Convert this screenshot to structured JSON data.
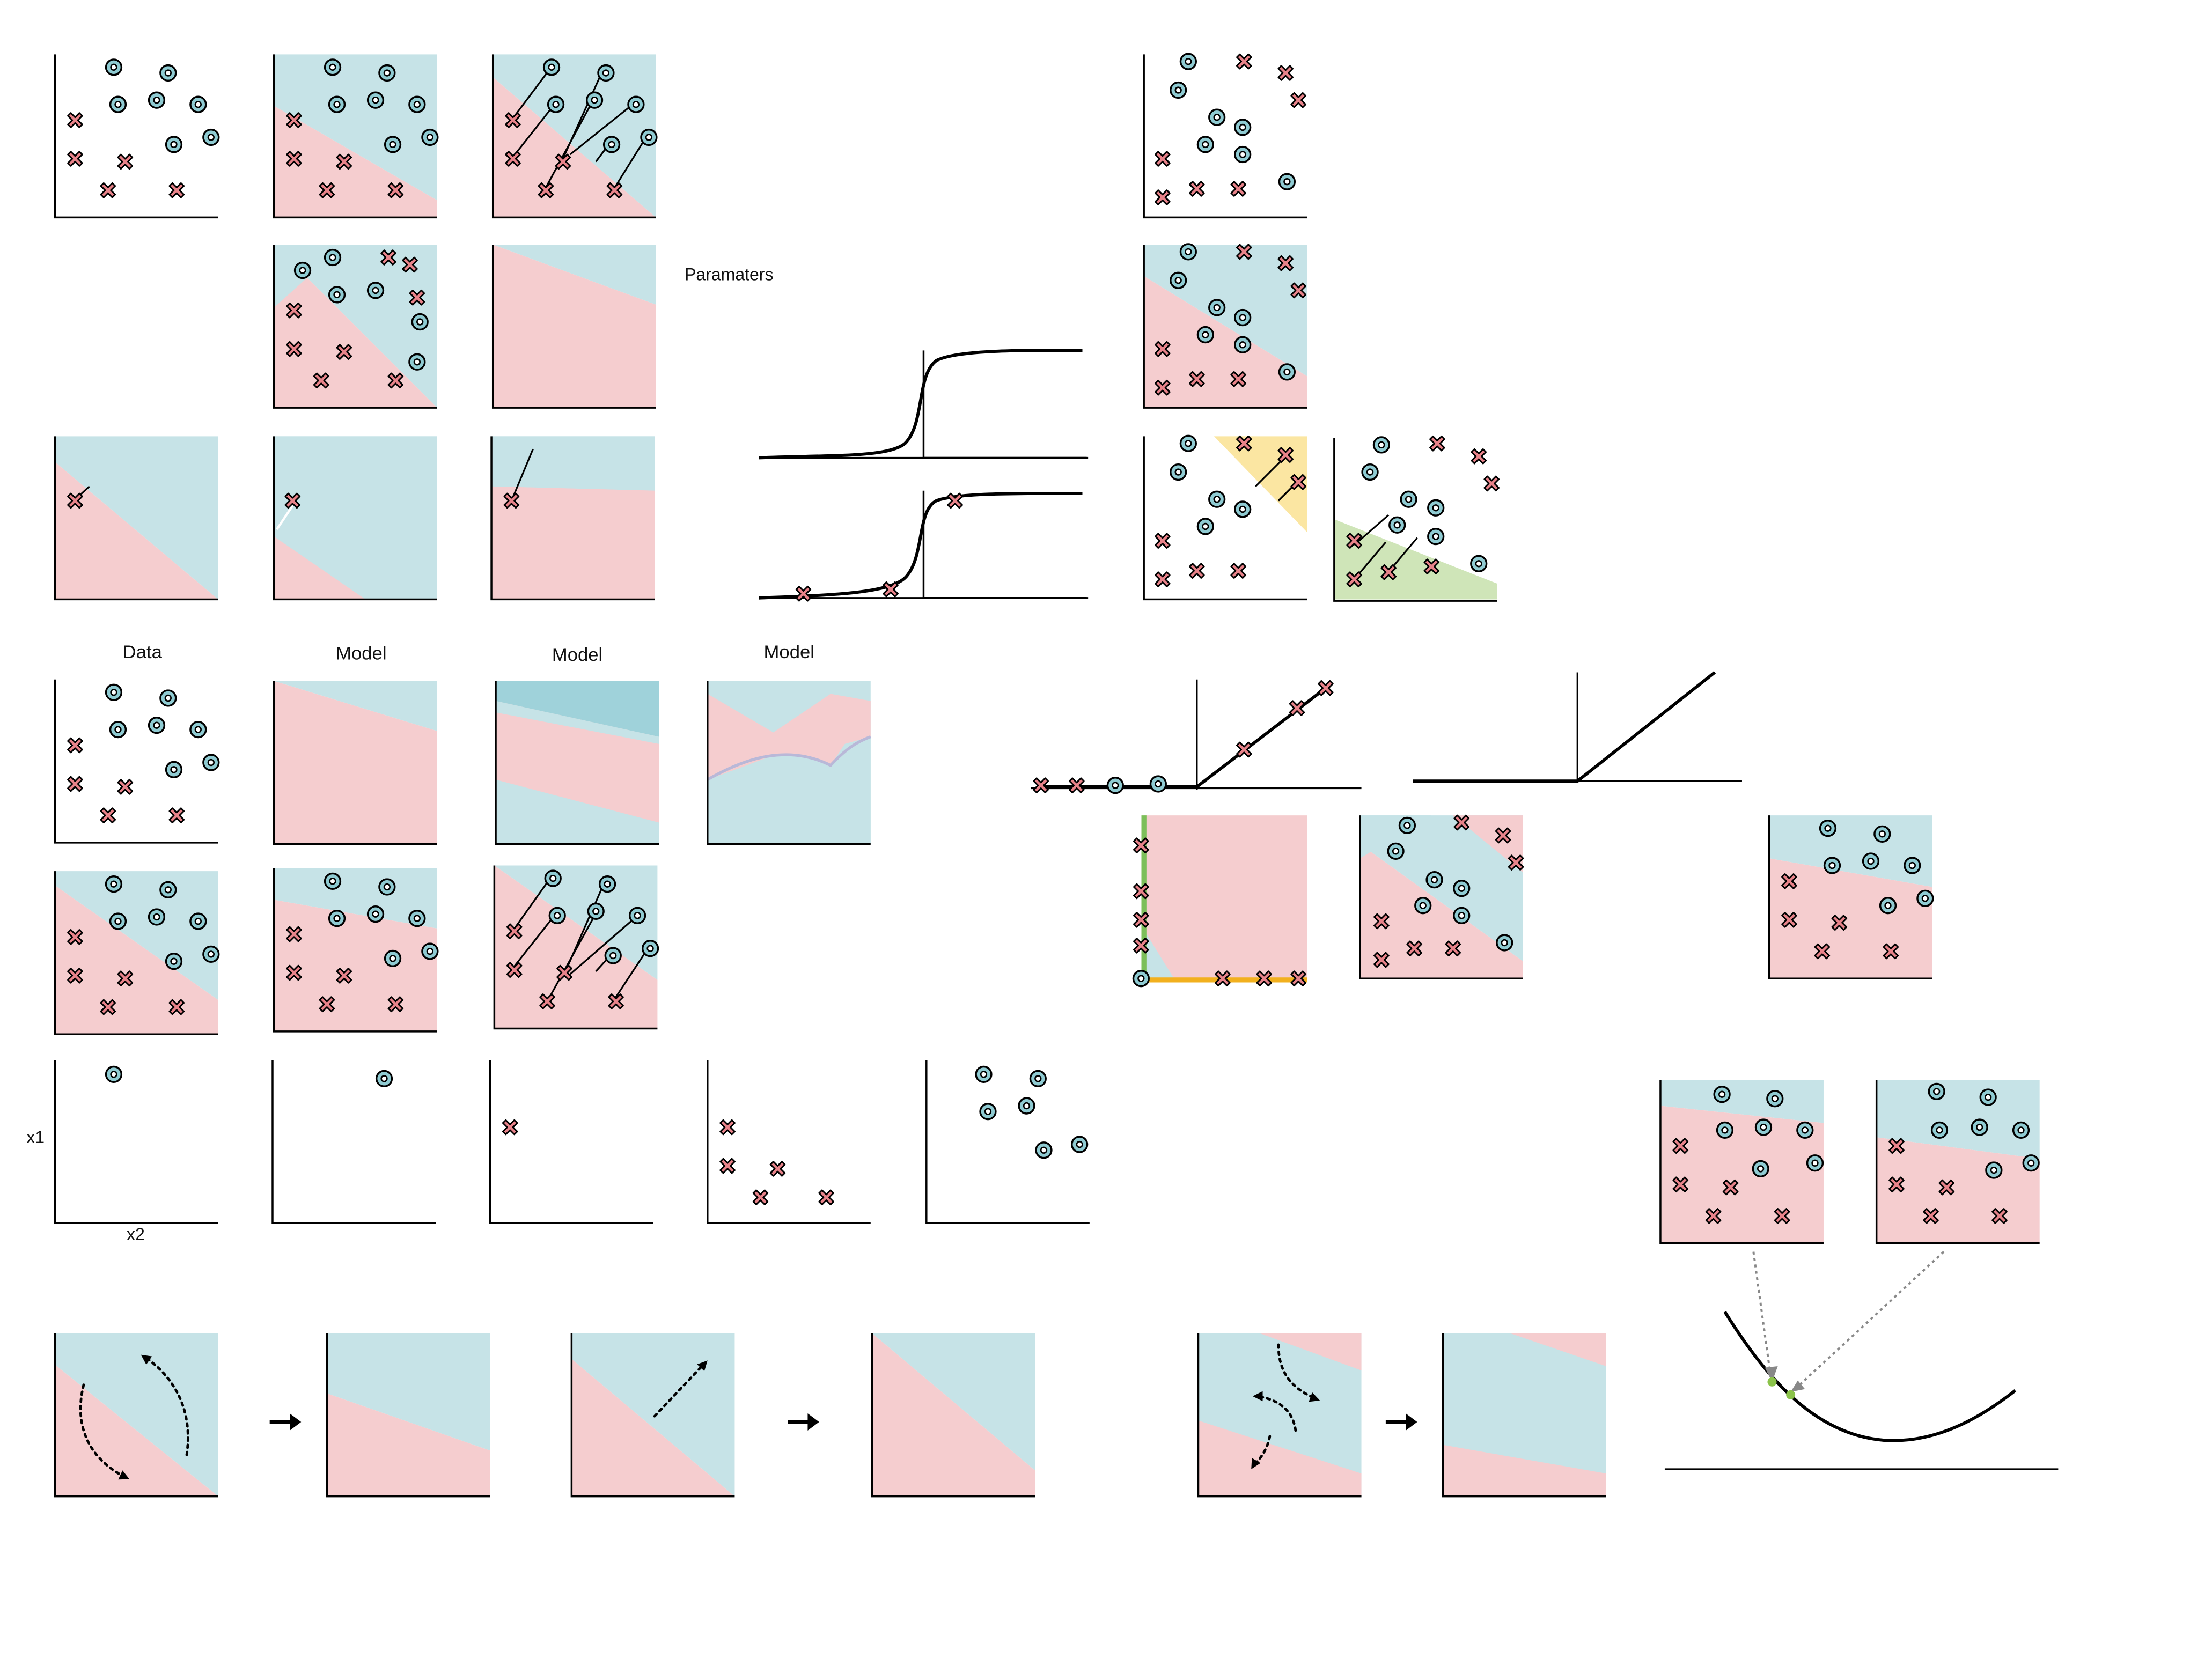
{
  "labels": {
    "data": "Data",
    "model_1": "Model",
    "model_2": "Model",
    "model_3": "Model",
    "paramaters": "Paramaters",
    "x1": "x1",
    "x2": "x2"
  },
  "colors": {
    "pink_region": "#f5cdcf",
    "blue_region": "#c6e3e7",
    "dark_blue_region": "#9fd2da",
    "yellow_region": "#fbe6a2",
    "green_region": "#cfe5b8",
    "cross_fill": "#e8838a",
    "circle_fill": "#8fcbd2",
    "axis": "#000000",
    "green_axis": "#7cbf5a",
    "orange_axis": "#f2b01e",
    "loss_dot": "#8bc34a",
    "arrow_gray": "#888888"
  },
  "icons": {
    "cross": "cross-marker-icon",
    "circle": "circle-marker-icon",
    "arrow": "arrow-right-icon"
  }
}
